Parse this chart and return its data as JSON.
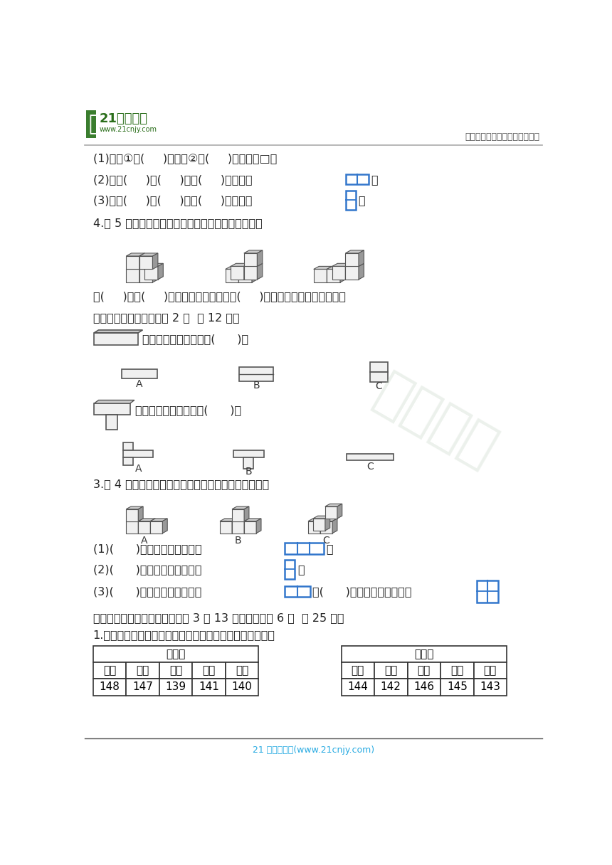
{
  "bg_color": "#ffffff",
  "header_line_color": "#aaaaaa",
  "footer_line_color": "#555555",
  "footer_text": "21 世纪教育网(www.21cnjy.com)",
  "footer_text_color": "#29ABE2",
  "header_right_text": "中小学教育资源及组卷应用平台",
  "header_right_color": "#555555",
  "logo_green_dark": "#2a6e1a",
  "logo_green": "#3a7d2e",
  "watermark_color": "#c0d0c0",
  "main_text_color": "#222222",
  "blue_box_color": "#3377cc",
  "line1": "(1)从图①的(     )面和图②的(     )面能看到□。",
  "line2": "(2)从图(     )的(     )面或(     )面能看到",
  "line3": "(3)从图(     )的(     )面或(     )面能看到",
  "line4": "4.用 5 个完全一样的小正方体分别摆成下面的样子。",
  "line5": "从(     )面和(     )面看到的形状相同，从(     )面看到的形状完全不相同。",
  "line6": "三、慎重选一选。（每空 2 分  计 12 分）",
  "line7_text": "从右面看，它的形状是(      )。",
  "line8_text": "从上面看，它的形状是(      )。",
  "line9": "3.用 4 个同样大小的正方体分别搭成下面的立体图形。",
  "line10": "(1)(      )从上面看到的图形是",
  "line11": "(2)(      )从右面看到的图形是",
  "line12": "(3)(      )从前面看到的图形是",
  "line12b": "，(      )从前面看到的图形是",
  "line13": "四、联系生活，解决问题。（第 3 题 13 分，其余每题 6 分  计 25 分）",
  "line14": "1.下面是两个篮球队队员的身高情况记录。（单位：厘米）",
  "table1_title": "奋斗队",
  "table1_headers": [
    "小强",
    "小明",
    "小雷",
    "小飞",
    "小思"
  ],
  "table1_values": [
    "148",
    "147",
    "139",
    "141",
    "140"
  ],
  "table2_title": "希望队",
  "table2_headers": [
    "小洋",
    "小杰",
    "小陶",
    "小浩",
    "小志"
  ],
  "table2_values": [
    "144",
    "142",
    "146",
    "145",
    "143"
  ],
  "table_border_color": "#333333",
  "cube_face_light": "#f0f0f0",
  "cube_face_mid": "#cccccc",
  "cube_face_dark": "#999999",
  "cube_edge": "#555555"
}
